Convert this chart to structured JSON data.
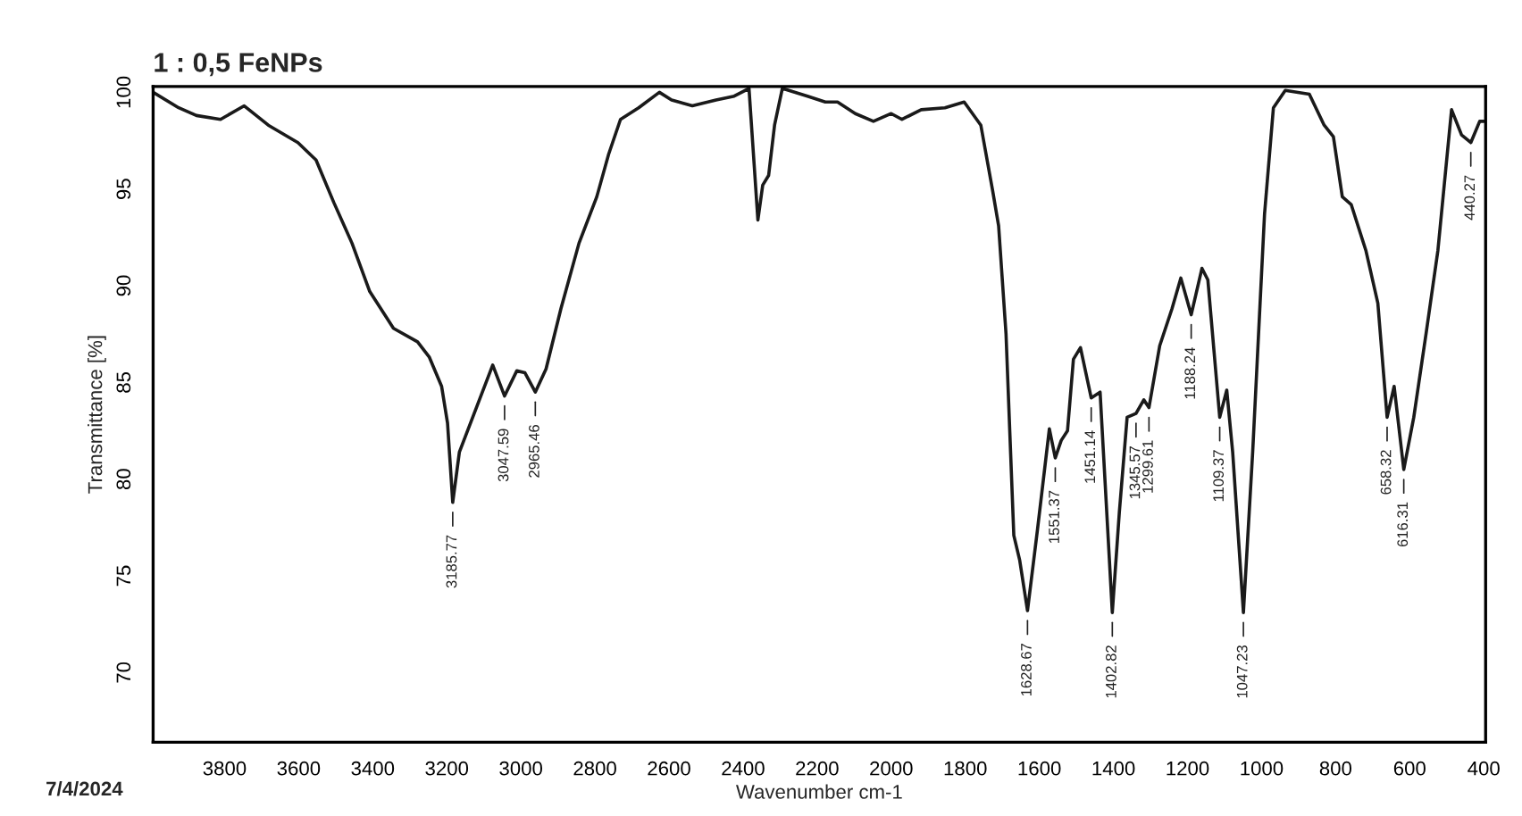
{
  "chart_data": {
    "type": "line",
    "title": "1 : 0,5 FeNPs",
    "xlabel": "Wavenumber cm-1",
    "ylabel": "Transmittance [%]",
    "xlim": [
      3993,
      395
    ],
    "xticks": [
      3800,
      3600,
      3400,
      3200,
      3000,
      2800,
      2600,
      2400,
      2200,
      2000,
      1800,
      1600,
      1400,
      1200,
      1000,
      800,
      600,
      400
    ],
    "ylim": [
      66.4,
      100.3
    ],
    "yticks": [
      70,
      75,
      80,
      85,
      90,
      95,
      100
    ],
    "grid": false,
    "marker": "none",
    "line_style": "solid",
    "x": [
      3993,
      3924,
      3876,
      3811,
      3747,
      3682,
      3602,
      3553,
      3505,
      3456,
      3408,
      3344,
      3279,
      3247,
      3214,
      3198,
      3184,
      3166,
      3118,
      3076,
      3044,
      3011,
      2989,
      2961,
      2932,
      2892,
      2843,
      2795,
      2763,
      2731,
      2682,
      2626,
      2593,
      2537,
      2473,
      2424,
      2384,
      2372,
      2360,
      2347,
      2331,
      2315,
      2294,
      2226,
      2178,
      2145,
      2097,
      2048,
      2000,
      1971,
      1919,
      1855,
      1803,
      1758,
      1726,
      1710,
      1690,
      1669,
      1653,
      1632,
      1605,
      1573,
      1557,
      1541,
      1524,
      1508,
      1489,
      1460,
      1436,
      1403,
      1384,
      1363,
      1339,
      1318,
      1304,
      1275,
      1242,
      1218,
      1190,
      1161,
      1145,
      1113,
      1094,
      1078,
      1049,
      1024,
      992,
      968,
      936,
      871,
      831,
      806,
      782,
      758,
      718,
      686,
      661,
      642,
      616,
      589,
      556,
      524,
      487,
      460,
      435,
      411,
      400
    ],
    "series": [
      {
        "color": "#1a1a1a",
        "values": [
          100,
          99.2,
          98.8,
          98.6,
          99.3,
          98.3,
          97.4,
          96.5,
          94.3,
          92.2,
          89.7,
          87.8,
          87.1,
          86.3,
          84.8,
          82.9,
          78.8,
          81.4,
          83.8,
          85.9,
          84.3,
          85.6,
          85.5,
          84.5,
          85.7,
          88.8,
          92.2,
          94.6,
          96.8,
          98.6,
          99.2,
          100,
          99.6,
          99.3,
          99.6,
          99.8,
          100.2,
          96.8,
          93.4,
          95.2,
          95.7,
          98.3,
          100.2,
          99.8,
          99.5,
          99.5,
          98.9,
          98.5,
          98.9,
          98.6,
          99.1,
          99.2,
          99.5,
          98.3,
          94.9,
          93.1,
          87.5,
          77.1,
          75.8,
          73.2,
          77.4,
          82.6,
          81.1,
          82.0,
          82.5,
          86.2,
          86.8,
          84.2,
          84.5,
          73.1,
          78.3,
          83.2,
          83.4,
          84.1,
          83.7,
          86.9,
          88.8,
          90.4,
          88.5,
          90.9,
          90.3,
          83.2,
          84.6,
          81.4,
          73.1,
          81.4,
          93.7,
          99.2,
          100.1,
          99.9,
          98.3,
          97.7,
          94.6,
          94.2,
          91.8,
          89.1,
          83.2,
          84.8,
          80.5,
          83.2,
          87.5,
          91.8,
          99.1,
          97.8,
          97.4,
          98.5,
          98.5
        ]
      }
    ],
    "annotations": [
      {
        "text": "3185.77",
        "x": 3184,
        "y": 78.8
      },
      {
        "text": "3047.59",
        "x": 3044,
        "y": 84.3
      },
      {
        "text": "2965.46",
        "x": 2961,
        "y": 84.5
      },
      {
        "text": "1628.67",
        "x": 1632,
        "y": 73.2
      },
      {
        "text": "1551.37",
        "x": 1557,
        "y": 81.1
      },
      {
        "text": "1451.14",
        "x": 1460,
        "y": 84.2
      },
      {
        "text": "1402.82",
        "x": 1403,
        "y": 73.1
      },
      {
        "text": "1345.57",
        "x": 1339,
        "y": 83.4
      },
      {
        "text": "1299.61",
        "x": 1304,
        "y": 83.7
      },
      {
        "text": "1188.24",
        "x": 1190,
        "y": 88.5
      },
      {
        "text": "1109.37",
        "x": 1113,
        "y": 83.2
      },
      {
        "text": "1047.23",
        "x": 1049,
        "y": 73.1
      },
      {
        "text": "658.32",
        "x": 661,
        "y": 83.2
      },
      {
        "text": "616.31",
        "x": 616,
        "y": 80.5
      },
      {
        "text": "440.27",
        "x": 435,
        "y": 97.4
      },
      "7/4/2024"
    ]
  }
}
